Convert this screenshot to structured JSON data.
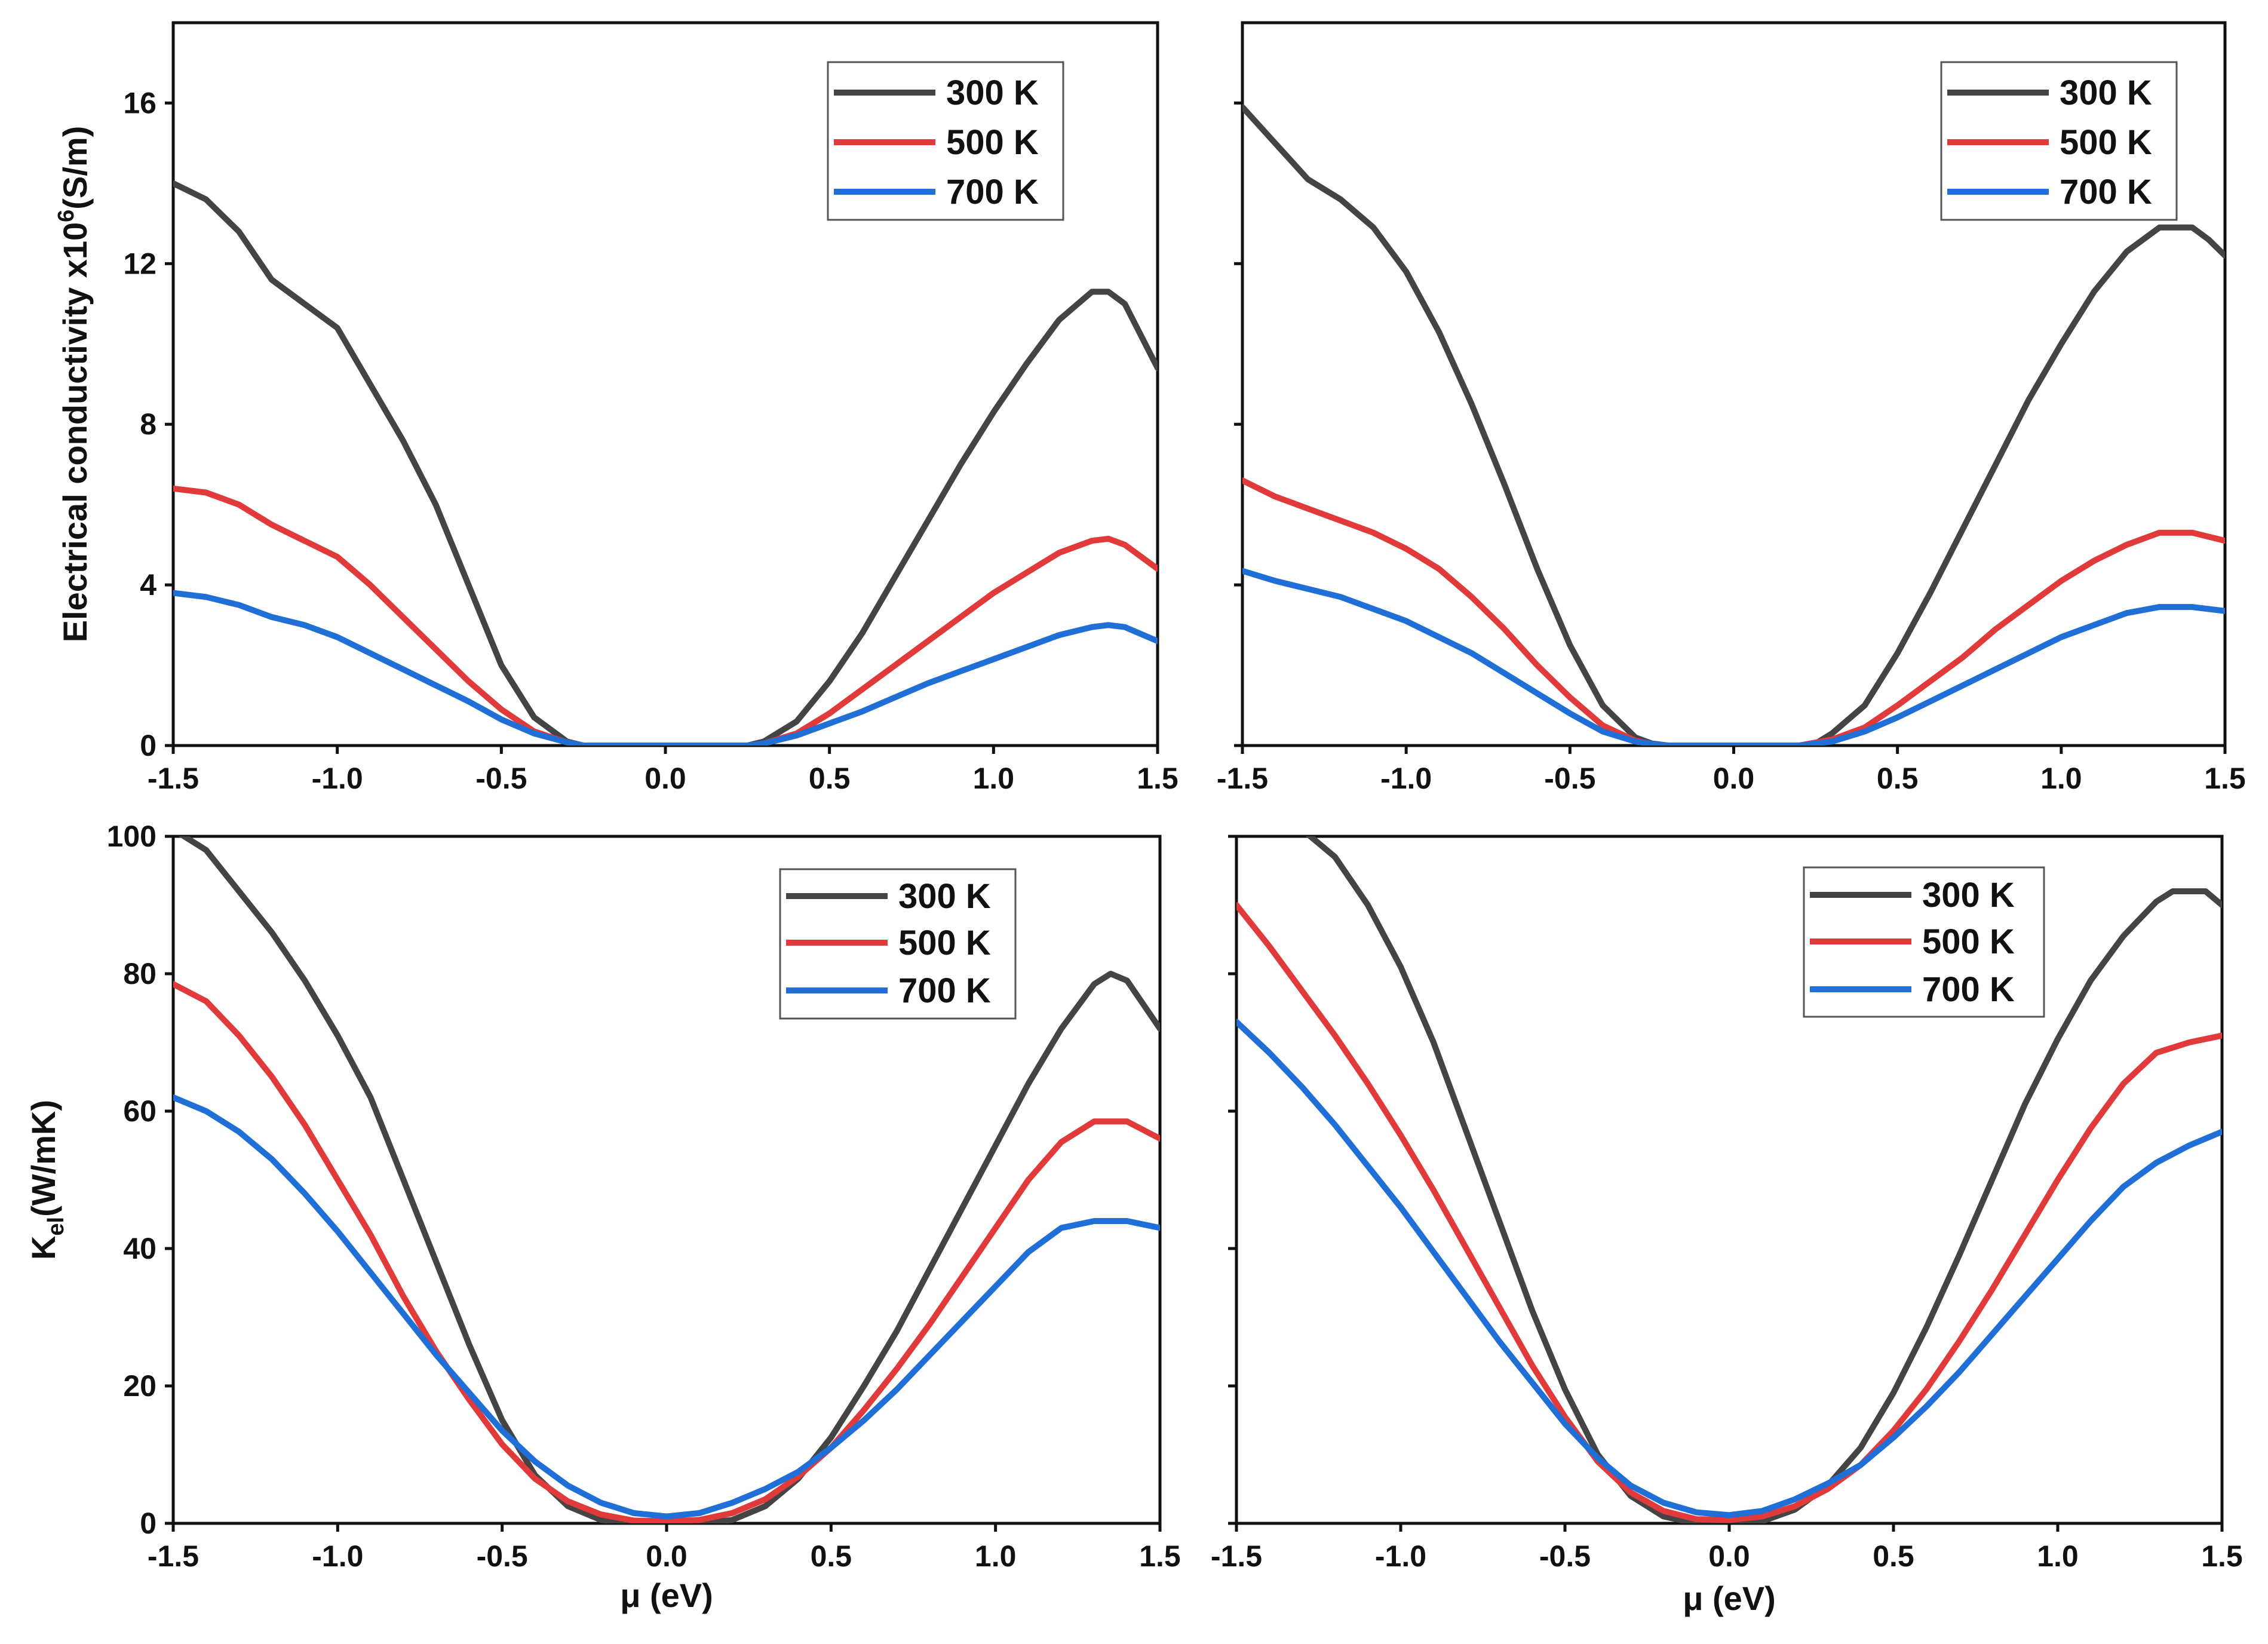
{
  "chart_data": [
    {
      "type": "line",
      "panel": "top-left",
      "ylabel_main": "Electrical conductivity x10",
      "ylabel_sup": "6",
      "ylabel_tail": "(S/m)",
      "xlabel": "",
      "xlim": [
        -1.5,
        1.5
      ],
      "ylim": [
        0,
        18
      ],
      "xticks": [
        "-1.5",
        "-1.0",
        "-0.5",
        "0.0",
        "0.5",
        "1.0",
        "1.5"
      ],
      "yticks": [
        "0",
        "4",
        "8",
        "12",
        "16"
      ],
      "legend_position": "top-right",
      "series": [
        {
          "name": "300 K",
          "color": "#444444",
          "x": [
            -1.5,
            -1.4,
            -1.3,
            -1.2,
            -1.1,
            -1.0,
            -0.9,
            -0.8,
            -0.7,
            -0.6,
            -0.5,
            -0.4,
            -0.3,
            -0.25,
            -0.2,
            0.0,
            0.2,
            0.25,
            0.3,
            0.4,
            0.5,
            0.6,
            0.7,
            0.8,
            0.9,
            1.0,
            1.1,
            1.2,
            1.3,
            1.35,
            1.4,
            1.5
          ],
          "y": [
            14.0,
            13.6,
            12.8,
            11.6,
            11.0,
            10.4,
            9.0,
            7.6,
            6.0,
            4.0,
            2.0,
            0.7,
            0.1,
            0.0,
            0.0,
            0.0,
            0.0,
            0.0,
            0.1,
            0.6,
            1.6,
            2.8,
            4.2,
            5.6,
            7.0,
            8.3,
            9.5,
            10.6,
            11.3,
            11.3,
            11.0,
            9.4
          ]
        },
        {
          "name": "500 K",
          "color": "#e03a3a",
          "x": [
            -1.5,
            -1.4,
            -1.3,
            -1.2,
            -1.1,
            -1.0,
            -0.9,
            -0.8,
            -0.7,
            -0.6,
            -0.5,
            -0.4,
            -0.3,
            -0.25,
            0.0,
            0.25,
            0.3,
            0.4,
            0.5,
            0.6,
            0.7,
            0.8,
            0.9,
            1.0,
            1.1,
            1.2,
            1.3,
            1.35,
            1.4,
            1.5
          ],
          "y": [
            6.4,
            6.3,
            6.0,
            5.5,
            5.1,
            4.7,
            4.0,
            3.2,
            2.4,
            1.6,
            0.9,
            0.35,
            0.08,
            0.0,
            0.0,
            0.0,
            0.05,
            0.3,
            0.8,
            1.4,
            2.0,
            2.6,
            3.2,
            3.8,
            4.3,
            4.8,
            5.1,
            5.15,
            5.0,
            4.4
          ]
        },
        {
          "name": "700 K",
          "color": "#1f6fd6",
          "x": [
            -1.5,
            -1.4,
            -1.3,
            -1.2,
            -1.1,
            -1.0,
            -0.9,
            -0.8,
            -0.7,
            -0.6,
            -0.5,
            -0.4,
            -0.3,
            -0.25,
            0.0,
            0.25,
            0.3,
            0.4,
            0.5,
            0.6,
            0.7,
            0.8,
            0.9,
            1.0,
            1.1,
            1.2,
            1.3,
            1.35,
            1.4,
            1.5
          ],
          "y": [
            3.8,
            3.7,
            3.5,
            3.2,
            3.0,
            2.7,
            2.3,
            1.9,
            1.5,
            1.1,
            0.65,
            0.3,
            0.08,
            0.0,
            0.0,
            0.0,
            0.05,
            0.25,
            0.55,
            0.85,
            1.2,
            1.55,
            1.85,
            2.15,
            2.45,
            2.75,
            2.95,
            3.0,
            2.95,
            2.6
          ]
        }
      ]
    },
    {
      "type": "line",
      "panel": "top-right",
      "xlabel": "",
      "ylabel": "",
      "xlim": [
        -1.5,
        1.5
      ],
      "ylim": [
        0,
        18
      ],
      "xticks": [
        "-1.5",
        "-1.0",
        "-0.5",
        "0.0",
        "0.5",
        "1.0",
        "1.5"
      ],
      "legend_position": "top-right",
      "series": [
        {
          "name": "300 K",
          "color": "#444444",
          "x": [
            -1.5,
            -1.4,
            -1.3,
            -1.2,
            -1.1,
            -1.0,
            -0.9,
            -0.8,
            -0.7,
            -0.6,
            -0.5,
            -0.4,
            -0.3,
            -0.25,
            -0.2,
            0.0,
            0.2,
            0.25,
            0.3,
            0.4,
            0.5,
            0.6,
            0.7,
            0.8,
            0.9,
            1.0,
            1.1,
            1.2,
            1.3,
            1.4,
            1.45,
            1.5
          ],
          "y": [
            15.9,
            15.0,
            14.1,
            13.6,
            12.9,
            11.8,
            10.3,
            8.5,
            6.5,
            4.4,
            2.5,
            1.0,
            0.2,
            0.05,
            0.0,
            0.0,
            0.0,
            0.05,
            0.3,
            1.0,
            2.3,
            3.8,
            5.4,
            7.0,
            8.6,
            10.0,
            11.3,
            12.3,
            12.9,
            12.9,
            12.6,
            12.2
          ]
        },
        {
          "name": "500 K",
          "color": "#e03a3a",
          "x": [
            -1.5,
            -1.4,
            -1.3,
            -1.2,
            -1.1,
            -1.0,
            -0.9,
            -0.8,
            -0.7,
            -0.6,
            -0.5,
            -0.4,
            -0.3,
            -0.25,
            -0.2,
            0.0,
            0.2,
            0.3,
            0.4,
            0.5,
            0.6,
            0.7,
            0.8,
            0.9,
            1.0,
            1.1,
            1.2,
            1.3,
            1.4,
            1.5
          ],
          "y": [
            6.6,
            6.2,
            5.9,
            5.6,
            5.3,
            4.9,
            4.4,
            3.7,
            2.9,
            2.0,
            1.2,
            0.5,
            0.12,
            0.04,
            0.0,
            0.0,
            0.0,
            0.15,
            0.45,
            1.0,
            1.6,
            2.2,
            2.9,
            3.5,
            4.1,
            4.6,
            5.0,
            5.3,
            5.3,
            5.1
          ]
        },
        {
          "name": "700 K",
          "color": "#1f6fd6",
          "x": [
            -1.5,
            -1.4,
            -1.3,
            -1.2,
            -1.1,
            -1.0,
            -0.9,
            -0.8,
            -0.7,
            -0.6,
            -0.5,
            -0.4,
            -0.3,
            -0.25,
            -0.2,
            0.0,
            0.2,
            0.3,
            0.4,
            0.5,
            0.6,
            0.7,
            0.8,
            0.9,
            1.0,
            1.1,
            1.2,
            1.3,
            1.4,
            1.5
          ],
          "y": [
            4.35,
            4.1,
            3.9,
            3.7,
            3.4,
            3.1,
            2.7,
            2.3,
            1.8,
            1.3,
            0.8,
            0.35,
            0.1,
            0.04,
            0.0,
            0.0,
            0.0,
            0.1,
            0.35,
            0.7,
            1.1,
            1.5,
            1.9,
            2.3,
            2.7,
            3.0,
            3.3,
            3.45,
            3.45,
            3.35
          ]
        }
      ]
    },
    {
      "type": "line",
      "panel": "bottom-left",
      "ylabel_main": "K",
      "ylabel_sub": "el",
      "ylabel_tail": "(W/mK)",
      "xlabel": "μ (eV)",
      "xlim": [
        -1.5,
        1.5
      ],
      "ylim": [
        0,
        100
      ],
      "xticks": [
        "-1.5",
        "-1.0",
        "-0.5",
        "0.0",
        "0.5",
        "1.0",
        "1.5"
      ],
      "yticks": [
        "0",
        "20",
        "40",
        "60",
        "80",
        "100"
      ],
      "legend_position": "top-right",
      "series": [
        {
          "name": "300 K",
          "color": "#444444",
          "x": [
            -1.5,
            -1.4,
            -1.3,
            -1.2,
            -1.1,
            -1.0,
            -0.9,
            -0.8,
            -0.7,
            -0.6,
            -0.5,
            -0.4,
            -0.3,
            -0.2,
            -0.1,
            0.0,
            0.1,
            0.2,
            0.3,
            0.4,
            0.5,
            0.6,
            0.7,
            0.8,
            0.9,
            1.0,
            1.1,
            1.2,
            1.3,
            1.35,
            1.4,
            1.5
          ],
          "y": [
            101.0,
            98.0,
            92.0,
            86.0,
            79.0,
            71.0,
            62.0,
            50.0,
            38.0,
            26.0,
            15.0,
            7.0,
            2.5,
            0.5,
            0.0,
            0.0,
            0.0,
            0.5,
            2.5,
            6.5,
            12.5,
            20.0,
            28.0,
            37.0,
            46.0,
            55.0,
            64.0,
            72.0,
            78.5,
            80.0,
            79.0,
            72.0
          ]
        },
        {
          "name": "500 K",
          "color": "#e03a3a",
          "x": [
            -1.5,
            -1.4,
            -1.3,
            -1.2,
            -1.1,
            -1.0,
            -0.9,
            -0.8,
            -0.7,
            -0.6,
            -0.5,
            -0.4,
            -0.3,
            -0.2,
            -0.1,
            0.0,
            0.1,
            0.2,
            0.3,
            0.4,
            0.5,
            0.6,
            0.7,
            0.8,
            0.9,
            1.0,
            1.1,
            1.2,
            1.3,
            1.4,
            1.5
          ],
          "y": [
            78.5,
            76.0,
            71.0,
            65.0,
            58.0,
            50.0,
            42.0,
            33.0,
            25.0,
            18.0,
            11.5,
            6.5,
            3.2,
            1.3,
            0.4,
            0.3,
            0.5,
            1.5,
            3.5,
            6.8,
            11.0,
            16.5,
            22.5,
            29.0,
            36.0,
            43.0,
            50.0,
            55.5,
            58.5,
            58.5,
            56.0
          ]
        },
        {
          "name": "700 K",
          "color": "#1f6fd6",
          "x": [
            -1.5,
            -1.4,
            -1.3,
            -1.2,
            -1.1,
            -1.0,
            -0.9,
            -0.8,
            -0.7,
            -0.6,
            -0.5,
            -0.4,
            -0.3,
            -0.2,
            -0.1,
            0.0,
            0.1,
            0.2,
            0.3,
            0.4,
            0.5,
            0.6,
            0.7,
            0.8,
            0.9,
            1.0,
            1.1,
            1.2,
            1.3,
            1.4,
            1.5
          ],
          "y": [
            62.0,
            60.0,
            57.0,
            53.0,
            48.0,
            42.5,
            36.5,
            30.5,
            24.5,
            19.0,
            13.5,
            9.0,
            5.5,
            3.0,
            1.5,
            1.0,
            1.5,
            3.0,
            5.0,
            7.5,
            11.0,
            15.0,
            19.5,
            24.5,
            29.5,
            34.5,
            39.5,
            43.0,
            44.0,
            44.0,
            43.0
          ]
        }
      ]
    },
    {
      "type": "line",
      "panel": "bottom-right",
      "xlabel": "μ (eV)",
      "ylabel": "",
      "xlim": [
        -1.5,
        1.5
      ],
      "ylim": [
        0,
        100
      ],
      "xticks": [
        "-1.5",
        "-1.0",
        "-0.5",
        "0.0",
        "0.5",
        "1.0",
        "1.5"
      ],
      "legend_position": "top-left",
      "series": [
        {
          "name": "300 K",
          "color": "#444444",
          "x": [
            -1.3,
            -1.2,
            -1.1,
            -1.0,
            -0.9,
            -0.8,
            -0.7,
            -0.6,
            -0.5,
            -0.4,
            -0.3,
            -0.2,
            -0.1,
            0.0,
            0.1,
            0.2,
            0.3,
            0.4,
            0.5,
            0.6,
            0.7,
            0.8,
            0.9,
            1.0,
            1.1,
            1.2,
            1.3,
            1.35,
            1.45,
            1.5
          ],
          "y": [
            101.0,
            97.0,
            90.0,
            81.0,
            70.0,
            57.0,
            44.0,
            31.0,
            19.5,
            10.0,
            4.0,
            1.0,
            0.0,
            0.0,
            0.3,
            2.0,
            5.5,
            11.0,
            19.0,
            28.5,
            39.0,
            50.0,
            61.0,
            70.5,
            79.0,
            85.5,
            90.5,
            92.0,
            92.0,
            90.0
          ]
        },
        {
          "name": "500 K",
          "color": "#e03a3a",
          "x": [
            -1.5,
            -1.4,
            -1.3,
            -1.2,
            -1.1,
            -1.0,
            -0.9,
            -0.8,
            -0.7,
            -0.6,
            -0.5,
            -0.4,
            -0.3,
            -0.2,
            -0.1,
            0.0,
            0.1,
            0.2,
            0.3,
            0.4,
            0.5,
            0.6,
            0.7,
            0.8,
            0.9,
            1.0,
            1.1,
            1.2,
            1.3,
            1.4,
            1.5
          ],
          "y": [
            90.0,
            84.0,
            77.5,
            71.0,
            64.0,
            56.5,
            48.5,
            40.0,
            31.5,
            23.0,
            15.5,
            9.0,
            4.5,
            1.8,
            0.6,
            0.5,
            1.0,
            2.5,
            5.0,
            8.5,
            13.5,
            19.5,
            26.5,
            34.0,
            42.0,
            50.0,
            57.5,
            64.0,
            68.5,
            70.0,
            71.0
          ]
        },
        {
          "name": "700 K",
          "color": "#1f6fd6",
          "x": [
            -1.5,
            -1.4,
            -1.3,
            -1.2,
            -1.1,
            -1.0,
            -0.9,
            -0.8,
            -0.7,
            -0.6,
            -0.5,
            -0.4,
            -0.3,
            -0.2,
            -0.1,
            0.0,
            0.1,
            0.2,
            0.3,
            0.4,
            0.5,
            0.6,
            0.7,
            0.8,
            0.9,
            1.0,
            1.1,
            1.2,
            1.3,
            1.4,
            1.5
          ],
          "y": [
            73.0,
            68.5,
            63.5,
            58.0,
            52.0,
            46.0,
            39.5,
            33.0,
            26.5,
            20.5,
            14.5,
            9.5,
            5.5,
            3.0,
            1.6,
            1.2,
            1.8,
            3.5,
            5.8,
            8.5,
            12.5,
            17.0,
            22.0,
            27.5,
            33.0,
            38.5,
            44.0,
            49.0,
            52.5,
            55.0,
            57.0
          ]
        }
      ]
    }
  ]
}
